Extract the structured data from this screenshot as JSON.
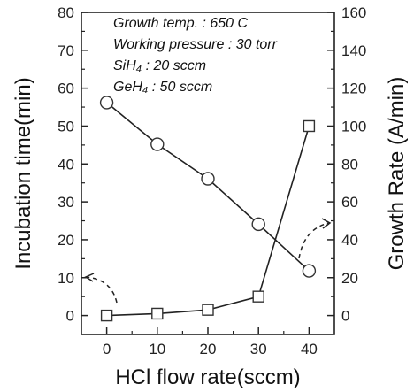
{
  "chart_data": {
    "type": "line",
    "xlabel": "HCl flow rate(sccm)",
    "ylabel_left": "Incubation time(min)",
    "ylabel_right": "Growth Rate (A/min)",
    "x": [
      0,
      10,
      20,
      30,
      40
    ],
    "x_ticks": [
      "0",
      "10",
      "20",
      "30",
      "40"
    ],
    "xlim": [
      -5,
      45
    ],
    "ylim_left": [
      -5,
      80
    ],
    "ylim_right": [
      -10,
      160
    ],
    "y_ticks_left": [
      "0",
      "10",
      "20",
      "30",
      "40",
      "50",
      "60",
      "70",
      "80"
    ],
    "y_ticks_right": [
      "0",
      "20",
      "40",
      "60",
      "80",
      "100",
      "120",
      "140",
      "160"
    ],
    "series": [
      {
        "marker": "circle",
        "axis": "left",
        "values": [
          56.2,
          45.2,
          36.1,
          24.1,
          11.8
        ]
      },
      {
        "marker": "square",
        "axis": "right",
        "values": [
          0,
          1,
          3,
          10,
          100
        ]
      }
    ],
    "annotations": [
      "Growth temp. : 650 C",
      "Working pressure : 30 torr",
      "SiH₄ : 20 sccm",
      "GeH₄ : 50 sccm"
    ],
    "grid": false,
    "legend": "none"
  }
}
